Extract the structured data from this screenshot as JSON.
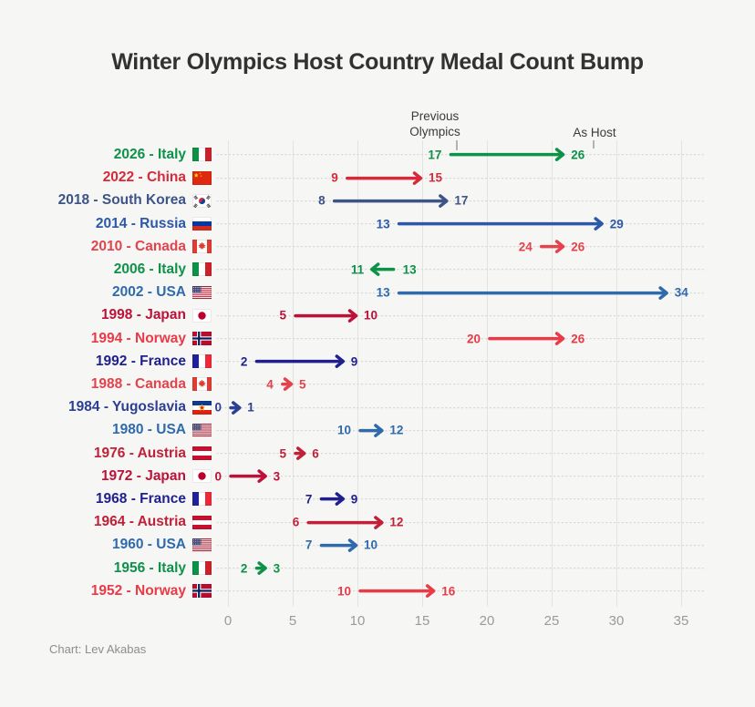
{
  "title": "Winter Olympics Host Country Medal Count Bump",
  "credit": "Chart: Lev Akabas",
  "annotations": {
    "previous": "Previous Olympics",
    "as_host": "As Host"
  },
  "colors": {
    "background": "#f6f6f4",
    "title": "#323232",
    "gridline": "#e3e3e0",
    "dotted_guide": "#d8d8d5",
    "axis_text": "#9a9a98",
    "annotation_text": "#3a3a3a",
    "pointer": "#b3b3b0",
    "credit": "#8d8d8b"
  },
  "chart_data": {
    "type": "arrow-dumbbell",
    "title": "Winter Olympics Host Country Medal Count Bump",
    "xlabel": "",
    "ylabel": "",
    "xlim": [
      0,
      35
    ],
    "x_ticks": [
      0,
      5,
      10,
      15,
      20,
      25,
      30,
      35
    ],
    "grid": "vertical-solid, per-row-dotted",
    "legend": "column annotations: Previous Olympics (start), As Host (end)",
    "rows": [
      {
        "year": "2026",
        "country": "Italy",
        "label": "2026 - Italy",
        "flag": "italy",
        "previous": 17,
        "as_host": 26,
        "color": "#0e9148"
      },
      {
        "year": "2022",
        "country": "China",
        "label": "2022 - China",
        "flag": "china",
        "previous": 9,
        "as_host": 15,
        "color": "#d7293a"
      },
      {
        "year": "2018",
        "country": "South Korea",
        "label": "2018 - South Korea",
        "flag": "south-korea",
        "previous": 8,
        "as_host": 17,
        "color": "#3c5488"
      },
      {
        "year": "2014",
        "country": "Russia",
        "label": "2014 - Russia",
        "flag": "russia",
        "previous": 13,
        "as_host": 29,
        "color": "#2b58a7"
      },
      {
        "year": "2010",
        "country": "Canada",
        "label": "2010 - Canada",
        "flag": "canada",
        "previous": 24,
        "as_host": 26,
        "color": "#e2434c"
      },
      {
        "year": "2006",
        "country": "Italy",
        "label": "2006 - Italy",
        "flag": "italy",
        "previous": 13,
        "as_host": 11,
        "color": "#0e9148"
      },
      {
        "year": "2002",
        "country": "USA",
        "label": "2002 - USA",
        "flag": "usa",
        "previous": 13,
        "as_host": 34,
        "color": "#2f6aac"
      },
      {
        "year": "1998",
        "country": "Japan",
        "label": "1998 - Japan",
        "flag": "japan",
        "previous": 5,
        "as_host": 10,
        "color": "#bd1139"
      },
      {
        "year": "1994",
        "country": "Norway",
        "label": "1994 - Norway",
        "flag": "norway",
        "previous": 20,
        "as_host": 26,
        "color": "#e93a47"
      },
      {
        "year": "1992",
        "country": "France",
        "label": "1992 - France",
        "flag": "france",
        "previous": 2,
        "as_host": 9,
        "color": "#1f1f8e"
      },
      {
        "year": "1988",
        "country": "Canada",
        "label": "1988 - Canada",
        "flag": "canada",
        "previous": 4,
        "as_host": 5,
        "color": "#e2434c"
      },
      {
        "year": "1984",
        "country": "Yugoslavia",
        "label": "1984 - Yugoslavia",
        "flag": "yugoslavia",
        "previous": 0,
        "as_host": 1,
        "color": "#2b3f94"
      },
      {
        "year": "1980",
        "country": "USA",
        "label": "1980 - USA",
        "flag": "usa",
        "previous": 10,
        "as_host": 12,
        "color": "#2f6aac"
      },
      {
        "year": "1976",
        "country": "Austria",
        "label": "1976 - Austria",
        "flag": "austria",
        "previous": 5,
        "as_host": 6,
        "color": "#c02038"
      },
      {
        "year": "1972",
        "country": "Japan",
        "label": "1972 - Japan",
        "flag": "japan",
        "previous": 0,
        "as_host": 3,
        "color": "#bd1139"
      },
      {
        "year": "1968",
        "country": "France",
        "label": "1968 - France",
        "flag": "france",
        "previous": 7,
        "as_host": 9,
        "color": "#1f1f8e"
      },
      {
        "year": "1964",
        "country": "Austria",
        "label": "1964 - Austria",
        "flag": "austria",
        "previous": 6,
        "as_host": 12,
        "color": "#c02038"
      },
      {
        "year": "1960",
        "country": "USA",
        "label": "1960 - USA",
        "flag": "usa",
        "previous": 7,
        "as_host": 10,
        "color": "#2f6aac"
      },
      {
        "year": "1956",
        "country": "Italy",
        "label": "1956 - Italy",
        "flag": "italy",
        "previous": 2,
        "as_host": 3,
        "color": "#0e9148"
      },
      {
        "year": "1952",
        "country": "Norway",
        "label": "1952 - Norway",
        "flag": "norway",
        "previous": 10,
        "as_host": 16,
        "color": "#e93a47"
      }
    ]
  }
}
